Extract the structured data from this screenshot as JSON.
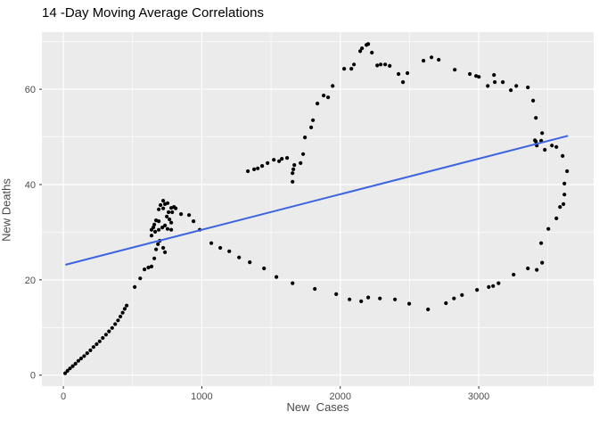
{
  "chart_data": {
    "type": "scatter",
    "title": "14 -Day Moving Average Correlations",
    "xlabel": "New  Cases",
    "ylabel": "New Deaths",
    "xlim": [
      -155,
      3830
    ],
    "ylim": [
      -2.3,
      72
    ],
    "x_ticks": [
      0,
      1000,
      2000,
      3000
    ],
    "x_minor_ticks": [
      500,
      1500,
      2500,
      3500
    ],
    "y_ticks": [
      0,
      20,
      40,
      60
    ],
    "y_minor_ticks": [
      10,
      30,
      50,
      70
    ],
    "grid": true,
    "legend": "none",
    "colors": {
      "panel_bg": "#EBEBEB",
      "grid": "#FFFFFF",
      "point": "#000000",
      "smooth_line": "#3C64E0",
      "tick_mark": "#333333",
      "tick_label": "#4D4D4D"
    },
    "trend_line": {
      "x1": 20,
      "y1": 23.2,
      "x2": 3640,
      "y2": 50.2
    },
    "points": [
      [
        13,
        0.4
      ],
      [
        30,
        0.9
      ],
      [
        48,
        1.4
      ],
      [
        68,
        1.9
      ],
      [
        88,
        2.4
      ],
      [
        108,
        3.0
      ],
      [
        128,
        3.5
      ],
      [
        150,
        4.0
      ],
      [
        172,
        4.6
      ],
      [
        195,
        5.2
      ],
      [
        218,
        5.9
      ],
      [
        240,
        6.5
      ],
      [
        262,
        7.1
      ],
      [
        285,
        7.8
      ],
      [
        308,
        8.5
      ],
      [
        330,
        9.2
      ],
      [
        352,
        9.9
      ],
      [
        374,
        10.7
      ],
      [
        395,
        11.5
      ],
      [
        412,
        12.3
      ],
      [
        428,
        13.1
      ],
      [
        443,
        13.9
      ],
      [
        457,
        14.6
      ],
      [
        515,
        18.5
      ],
      [
        555,
        20.3
      ],
      [
        586,
        22.2
      ],
      [
        614,
        22.6
      ],
      [
        637,
        22.8
      ],
      [
        657,
        24.5
      ],
      [
        721,
        36.6
      ],
      [
        734,
        35.9
      ],
      [
        702,
        35.7
      ],
      [
        753,
        36.1
      ],
      [
        689,
        34.8
      ],
      [
        721,
        35.0
      ],
      [
        779,
        35.1
      ],
      [
        799,
        35.3
      ],
      [
        811,
        35.0
      ],
      [
        850,
        33.8
      ],
      [
        908,
        33.6
      ],
      [
        940,
        32.3
      ],
      [
        760,
        34.2
      ],
      [
        786,
        34.2
      ],
      [
        747,
        33.3
      ],
      [
        766,
        32.7
      ],
      [
        779,
        32.0
      ],
      [
        670,
        32.5
      ],
      [
        689,
        32.3
      ],
      [
        657,
        31.6
      ],
      [
        650,
        31.0
      ],
      [
        637,
        30.5
      ],
      [
        663,
        30.1
      ],
      [
        689,
        30.5
      ],
      [
        715,
        31.0
      ],
      [
        734,
        31.4
      ],
      [
        753,
        30.7
      ],
      [
        779,
        30.5
      ],
      [
        637,
        29.3
      ],
      [
        696,
        28.2
      ],
      [
        683,
        27.5
      ],
      [
        721,
        26.7
      ],
      [
        670,
        26.4
      ],
      [
        734,
        25.8
      ],
      [
        985,
        30.5
      ],
      [
        1069,
        27.7
      ],
      [
        1133,
        26.7
      ],
      [
        1198,
        26.0
      ],
      [
        1269,
        24.7
      ],
      [
        1346,
        23.7
      ],
      [
        1449,
        22.4
      ],
      [
        1539,
        20.6
      ],
      [
        1655,
        19.3
      ],
      [
        1816,
        18.1
      ],
      [
        1971,
        17.0
      ],
      [
        2067,
        15.9
      ],
      [
        2151,
        15.5
      ],
      [
        2202,
        16.3
      ],
      [
        2286,
        16.1
      ],
      [
        2395,
        15.9
      ],
      [
        2498,
        15.0
      ],
      [
        2634,
        13.8
      ],
      [
        2763,
        15.1
      ],
      [
        2821,
        16.1
      ],
      [
        2879,
        16.8
      ],
      [
        2988,
        17.9
      ],
      [
        3072,
        18.5
      ],
      [
        3104,
        18.7
      ],
      [
        3143,
        19.3
      ],
      [
        3252,
        21.1
      ],
      [
        3355,
        22.4
      ],
      [
        3419,
        22.1
      ],
      [
        3458,
        23.6
      ],
      [
        3451,
        27.7
      ],
      [
        3503,
        30.7
      ],
      [
        3561,
        32.9
      ],
      [
        3587,
        35.3
      ],
      [
        3612,
        35.9
      ],
      [
        3619,
        37.9
      ],
      [
        3619,
        40.2
      ],
      [
        3638,
        42.8
      ],
      [
        3606,
        46.0
      ],
      [
        3561,
        47.9
      ],
      [
        3529,
        48.2
      ],
      [
        3477,
        47.3
      ],
      [
        3419,
        48.2
      ],
      [
        3413,
        49.0
      ],
      [
        3406,
        49.3
      ],
      [
        3451,
        49.2
      ],
      [
        3458,
        50.8
      ],
      [
        3413,
        54.0
      ],
      [
        3393,
        57.6
      ],
      [
        3355,
        60.4
      ],
      [
        3271,
        60.7
      ],
      [
        3232,
        59.8
      ],
      [
        3174,
        61.5
      ],
      [
        3116,
        61.5
      ],
      [
        3110,
        63.0
      ],
      [
        3065,
        60.7
      ],
      [
        3001,
        62.6
      ],
      [
        2981,
        62.8
      ],
      [
        2936,
        63.2
      ],
      [
        2827,
        64.1
      ],
      [
        2711,
        66.2
      ],
      [
        2659,
        66.7
      ],
      [
        2601,
        66.0
      ],
      [
        2485,
        63.4
      ],
      [
        2453,
        61.5
      ],
      [
        2421,
        63.2
      ],
      [
        2357,
        64.9
      ],
      [
        2324,
        65.2
      ],
      [
        2292,
        65.2
      ],
      [
        2267,
        65.0
      ],
      [
        2228,
        67.7
      ],
      [
        2202,
        69.5
      ],
      [
        2189,
        69.3
      ],
      [
        2157,
        68.6
      ],
      [
        2144,
        68.0
      ],
      [
        2099,
        65.2
      ],
      [
        2080,
        64.3
      ],
      [
        2028,
        64.3
      ],
      [
        1945,
        60.7
      ],
      [
        1912,
        58.3
      ],
      [
        1880,
        58.7
      ],
      [
        1835,
        57.0
      ],
      [
        1803,
        53.5
      ],
      [
        1790,
        52.0
      ],
      [
        1745,
        49.9
      ],
      [
        1732,
        46.4
      ],
      [
        1713,
        44.5
      ],
      [
        1668,
        44.1
      ],
      [
        1661,
        43.2
      ],
      [
        1655,
        42.4
      ],
      [
        1655,
        40.6
      ],
      [
        1616,
        45.6
      ],
      [
        1578,
        45.4
      ],
      [
        1558,
        44.9
      ],
      [
        1520,
        45.2
      ],
      [
        1475,
        44.5
      ],
      [
        1436,
        43.9
      ],
      [
        1404,
        43.4
      ],
      [
        1378,
        43.2
      ],
      [
        1333,
        42.8
      ]
    ]
  }
}
